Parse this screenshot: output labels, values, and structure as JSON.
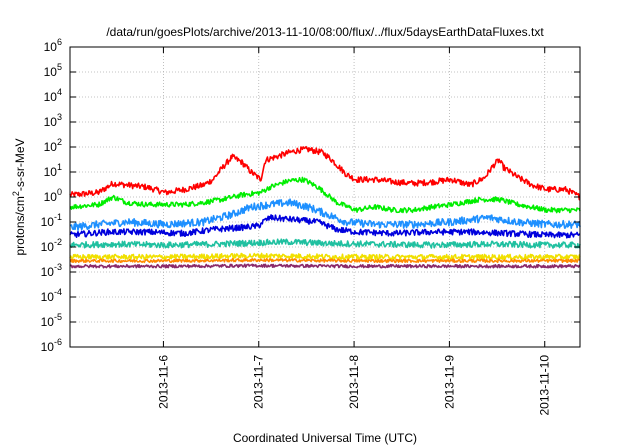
{
  "chart_data": {
    "type": "line",
    "title": "/data/run/goesPlots/archive/2013-11-10/08:00/flux/../flux/5daysEarthDataFluxes.txt",
    "xlabel": "Coordinated Universal Time (UTC)",
    "ylabel_parts": [
      "protons/cm",
      "2",
      "-s-sr-MeV"
    ],
    "y_scale": "log",
    "ylim": [
      1e-06,
      1000000.0
    ],
    "xlim": [
      0,
      5.35
    ],
    "x_ticks": [
      {
        "x": 0.98,
        "label": "2013-11-6"
      },
      {
        "x": 1.98,
        "label": "2013-11-7"
      },
      {
        "x": 2.98,
        "label": "2013-11-8"
      },
      {
        "x": 3.98,
        "label": "2013-11-9"
      },
      {
        "x": 4.98,
        "label": "2013-11-10"
      }
    ],
    "y_ticks": [
      {
        "exp": -6,
        "base": "10",
        "sup": "-6"
      },
      {
        "exp": -5,
        "base": "10",
        "sup": "-5"
      },
      {
        "exp": -4,
        "base": "10",
        "sup": "-4"
      },
      {
        "exp": -3,
        "base": "10",
        "sup": "-3"
      },
      {
        "exp": -2,
        "base": "10",
        "sup": "-2"
      },
      {
        "exp": -1,
        "base": "10",
        "sup": "-1"
      },
      {
        "exp": 0,
        "base": "10",
        "sup": "0"
      },
      {
        "exp": 1,
        "base": "10",
        "sup": "1"
      },
      {
        "exp": 2,
        "base": "10",
        "sup": "2"
      },
      {
        "exp": 3,
        "base": "10",
        "sup": "3"
      },
      {
        "exp": 4,
        "base": "10",
        "sup": "4"
      },
      {
        "exp": 5,
        "base": "10",
        "sup": "5"
      },
      {
        "exp": 6,
        "base": "10",
        "sup": "6"
      }
    ],
    "grid": true,
    "series": [
      {
        "color": "#ff0000",
        "noise": 0.12,
        "points": [
          [
            0,
            1.2
          ],
          [
            0.3,
            1.5
          ],
          [
            0.45,
            3.5
          ],
          [
            0.6,
            3.0
          ],
          [
            0.8,
            2.5
          ],
          [
            1.0,
            1.5
          ],
          [
            1.2,
            2.0
          ],
          [
            1.4,
            3.0
          ],
          [
            1.5,
            5.0
          ],
          [
            1.6,
            15
          ],
          [
            1.7,
            40
          ],
          [
            1.8,
            25
          ],
          [
            1.9,
            10
          ],
          [
            2.0,
            5.0
          ],
          [
            2.05,
            30
          ],
          [
            2.2,
            45
          ],
          [
            2.3,
            60
          ],
          [
            2.4,
            75
          ],
          [
            2.5,
            80
          ],
          [
            2.65,
            60
          ],
          [
            2.75,
            30
          ],
          [
            2.9,
            8
          ],
          [
            3.0,
            5
          ],
          [
            3.2,
            5
          ],
          [
            3.4,
            4
          ],
          [
            3.6,
            3.5
          ],
          [
            3.8,
            4
          ],
          [
            4.0,
            5
          ],
          [
            4.2,
            3
          ],
          [
            4.35,
            6
          ],
          [
            4.45,
            20
          ],
          [
            4.5,
            30
          ],
          [
            4.55,
            15
          ],
          [
            4.7,
            6
          ],
          [
            4.85,
            3
          ],
          [
            5.0,
            2
          ],
          [
            5.2,
            2
          ],
          [
            5.35,
            1
          ]
        ]
      },
      {
        "color": "#00ee00",
        "noise": 0.1,
        "points": [
          [
            0,
            0.4
          ],
          [
            0.3,
            0.5
          ],
          [
            0.45,
            1.0
          ],
          [
            0.6,
            0.6
          ],
          [
            0.8,
            0.5
          ],
          [
            1.0,
            0.5
          ],
          [
            1.2,
            0.5
          ],
          [
            1.4,
            0.6
          ],
          [
            1.6,
            0.8
          ],
          [
            1.8,
            1.2
          ],
          [
            2.0,
            1.5
          ],
          [
            2.1,
            2.5
          ],
          [
            2.3,
            4.5
          ],
          [
            2.45,
            5.0
          ],
          [
            2.6,
            2.5
          ],
          [
            2.8,
            0.6
          ],
          [
            3.0,
            0.3
          ],
          [
            3.2,
            0.4
          ],
          [
            3.4,
            0.3
          ],
          [
            3.6,
            0.3
          ],
          [
            3.8,
            0.4
          ],
          [
            4.0,
            0.5
          ],
          [
            4.3,
            0.8
          ],
          [
            4.5,
            0.8
          ],
          [
            4.7,
            0.5
          ],
          [
            5.0,
            0.3
          ],
          [
            5.35,
            0.3
          ]
        ]
      },
      {
        "color": "#1e90ff",
        "noise": 0.15,
        "points": [
          [
            0,
            0.06
          ],
          [
            0.3,
            0.08
          ],
          [
            0.6,
            0.1
          ],
          [
            1.0,
            0.08
          ],
          [
            1.4,
            0.1
          ],
          [
            1.7,
            0.2
          ],
          [
            1.9,
            0.4
          ],
          [
            2.1,
            0.5
          ],
          [
            2.3,
            0.6
          ],
          [
            2.5,
            0.4
          ],
          [
            2.7,
            0.2
          ],
          [
            2.9,
            0.1
          ],
          [
            3.2,
            0.08
          ],
          [
            3.6,
            0.08
          ],
          [
            4.0,
            0.1
          ],
          [
            4.4,
            0.15
          ],
          [
            4.7,
            0.1
          ],
          [
            5.0,
            0.08
          ],
          [
            5.35,
            0.08
          ]
        ]
      },
      {
        "color": "#0000dd",
        "noise": 0.12,
        "points": [
          [
            0,
            0.03
          ],
          [
            0.4,
            0.04
          ],
          [
            0.8,
            0.04
          ],
          [
            1.2,
            0.035
          ],
          [
            1.5,
            0.05
          ],
          [
            1.8,
            0.06
          ],
          [
            1.98,
            0.07
          ],
          [
            2.02,
            0.1
          ],
          [
            2.1,
            0.15
          ],
          [
            2.3,
            0.13
          ],
          [
            2.6,
            0.1
          ],
          [
            2.8,
            0.05
          ],
          [
            3.0,
            0.04
          ],
          [
            3.4,
            0.035
          ],
          [
            3.8,
            0.04
          ],
          [
            4.2,
            0.04
          ],
          [
            4.6,
            0.035
          ],
          [
            5.0,
            0.03
          ],
          [
            5.35,
            0.03
          ]
        ]
      },
      {
        "color": "#20c0a0",
        "noise": 0.12,
        "points": [
          [
            0,
            0.012
          ],
          [
            0.5,
            0.013
          ],
          [
            1.0,
            0.012
          ],
          [
            1.5,
            0.013
          ],
          [
            2.0,
            0.015
          ],
          [
            2.3,
            0.016
          ],
          [
            2.7,
            0.014
          ],
          [
            3.2,
            0.013
          ],
          [
            3.8,
            0.012
          ],
          [
            4.4,
            0.013
          ],
          [
            5.0,
            0.012
          ],
          [
            5.35,
            0.012
          ]
        ]
      },
      {
        "color": "#f0e000",
        "noise": 0.1,
        "points": [
          [
            0,
            0.004
          ],
          [
            1.0,
            0.004
          ],
          [
            2.0,
            0.0045
          ],
          [
            3.0,
            0.004
          ],
          [
            4.0,
            0.004
          ],
          [
            5.35,
            0.004
          ]
        ]
      },
      {
        "color": "#ff8c00",
        "noise": 0.06,
        "points": [
          [
            0,
            0.0028
          ],
          [
            1.0,
            0.0028
          ],
          [
            2.0,
            0.003
          ],
          [
            3.0,
            0.0028
          ],
          [
            4.0,
            0.0028
          ],
          [
            5.35,
            0.0028
          ]
        ]
      },
      {
        "color": "#8b2a6a",
        "noise": 0.06,
        "points": [
          [
            0,
            0.0017
          ],
          [
            1.0,
            0.0017
          ],
          [
            2.0,
            0.0018
          ],
          [
            3.0,
            0.0017
          ],
          [
            4.0,
            0.0017
          ],
          [
            5.35,
            0.0017
          ]
        ]
      }
    ]
  }
}
